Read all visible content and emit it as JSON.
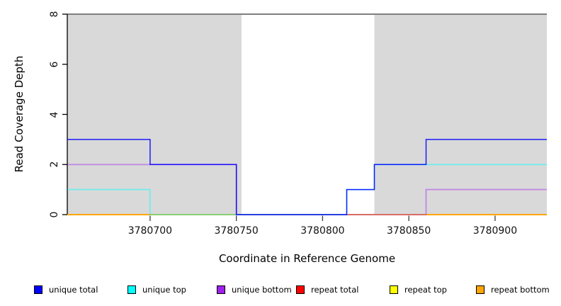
{
  "figure": {
    "ylabel": "Read Coverage Depth",
    "xlabel": "Coordinate in Reference Genome"
  },
  "legend": {
    "items": [
      {
        "label": "unique total",
        "color": "#0000ff"
      },
      {
        "label": "unique top",
        "color": "#00ffff"
      },
      {
        "label": "unique bottom",
        "color": "#a020f0"
      },
      {
        "label": "repeat total",
        "color": "#ff0000"
      },
      {
        "label": "repeat top",
        "color": "#ffff00"
      },
      {
        "label": "repeat bottom",
        "color": "#ffa500"
      }
    ]
  },
  "chart_data": {
    "type": "line",
    "step": true,
    "title": "",
    "xlabel": "Coordinate in Reference Genome",
    "ylabel": "Read Coverage Depth",
    "xlim": [
      3780652,
      3780930
    ],
    "ylim": [
      0,
      8
    ],
    "xticks": [
      3780700,
      3780750,
      3780800,
      3780850,
      3780900
    ],
    "yticks": [
      0,
      2,
      4,
      6,
      8
    ],
    "grid": false,
    "legend_position": "bottom",
    "shaded_regions": [
      {
        "from": 3780652,
        "to": 3780753,
        "color": "#d9d9d9",
        "meaning": "shaded region"
      },
      {
        "from": 3780830,
        "to": 3780930,
        "color": "#d9d9d9",
        "meaning": "shaded region"
      }
    ],
    "top_border_line": {
      "y": 8,
      "color": "#7f7f7f"
    },
    "series": [
      {
        "name": "unique total",
        "color": "#0000ff",
        "points": [
          [
            3780652,
            3
          ],
          [
            3780700,
            2
          ],
          [
            3780750,
            0
          ],
          [
            3780814,
            1
          ],
          [
            3780830,
            2
          ],
          [
            3780860,
            3
          ]
        ]
      },
      {
        "name": "unique top",
        "color": "#00ffff",
        "points": [
          [
            3780652,
            1
          ],
          [
            3780700,
            0
          ],
          [
            3780814,
            1
          ],
          [
            3780830,
            2
          ]
        ]
      },
      {
        "name": "unique bottom",
        "color": "#a020f0",
        "points": [
          [
            3780652,
            2
          ],
          [
            3780750,
            0
          ],
          [
            3780860,
            1
          ]
        ]
      },
      {
        "name": "repeat total",
        "color": "#ff0000",
        "points": [
          [
            3780652,
            0
          ]
        ]
      },
      {
        "name": "repeat top",
        "color": "#ffff00",
        "points": [
          [
            3780652,
            0
          ]
        ]
      },
      {
        "name": "repeat bottom",
        "color": "#ffa500",
        "points": [
          [
            3780652,
            0
          ]
        ]
      }
    ]
  }
}
